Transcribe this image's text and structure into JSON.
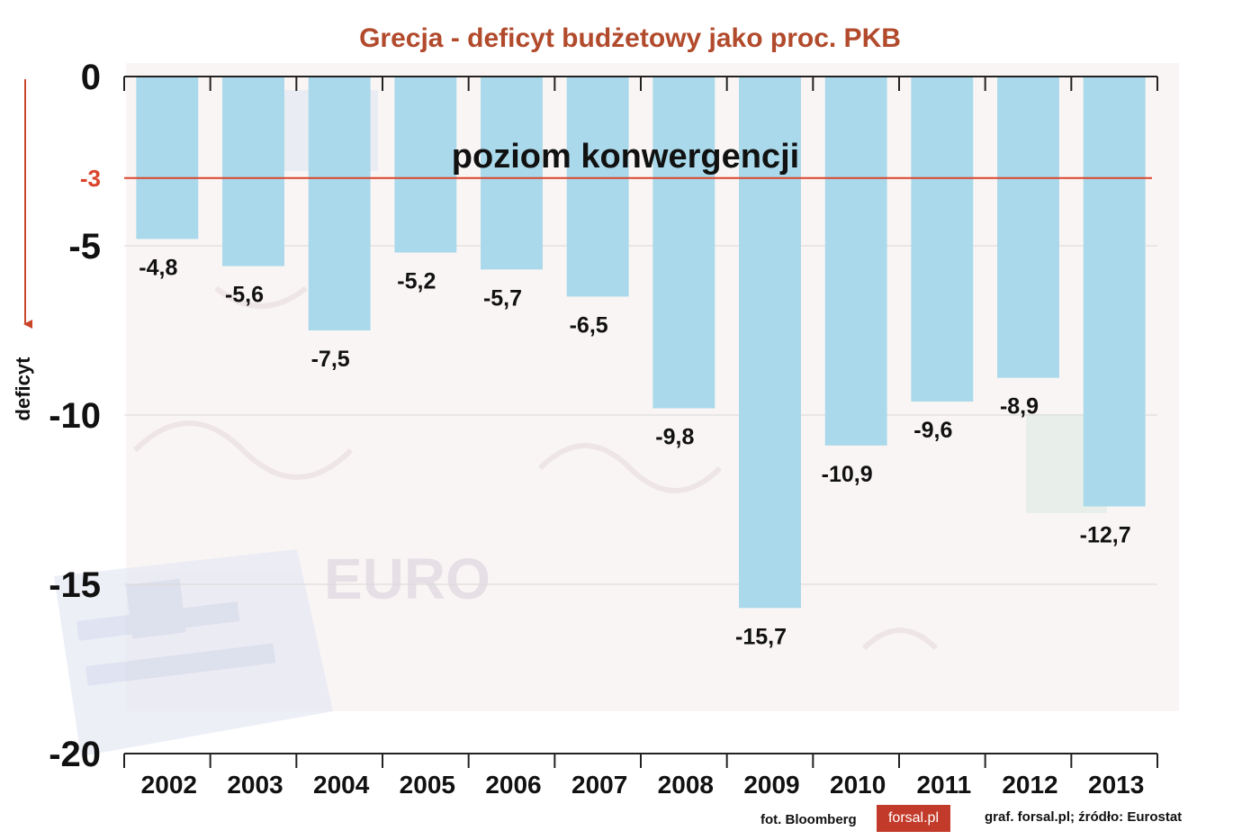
{
  "chart_data": {
    "type": "bar",
    "title": "Grecja - deficyt budżetowy jako proc. PKB",
    "ylabel": "deficyt",
    "xlabel": "",
    "categories": [
      "2002",
      "2003",
      "2004",
      "2005",
      "2006",
      "2007",
      "2008",
      "2009",
      "2010",
      "2011",
      "2012",
      "2013"
    ],
    "values": [
      -4.8,
      -5.6,
      -7.5,
      -5.2,
      -5.7,
      -6.5,
      -9.8,
      -15.7,
      -10.9,
      -9.6,
      -8.9,
      -12.7
    ],
    "value_labels": [
      "-4,8",
      "-5,6",
      "-7,5",
      "-5,2",
      "-5,7",
      "-6,5",
      "-9,8",
      "-15,7",
      "-10,9",
      "-9,6",
      "-8,9",
      "-12,7"
    ],
    "ylim": [
      -20,
      0
    ],
    "y_ticks": [
      0,
      -5,
      -10,
      -15,
      -20
    ],
    "y_tick_labels": [
      "0",
      "-5",
      "-10",
      "-15",
      "-20"
    ],
    "reference_line": {
      "value": -3,
      "tick_label": "-3",
      "label": "poziom konwergencji",
      "color": "#d9442b"
    },
    "bar_color": "#a9d9ea",
    "grid": true
  },
  "footer": {
    "photo_credit": "fot. Bloomberg",
    "logo_text": "forsal.pl",
    "source": "graf. forsal.pl;  źródło: Eurostat"
  }
}
